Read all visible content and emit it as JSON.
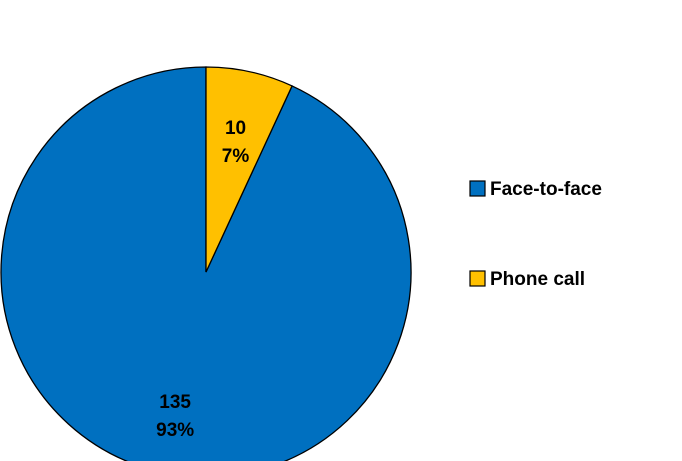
{
  "chart_data": {
    "type": "pie",
    "title": "",
    "categories": [
      "Face-to-face",
      "Phone call"
    ],
    "values": [
      135,
      10
    ],
    "percent_labels": [
      "93%",
      "7%"
    ],
    "colors": [
      "#0070C0",
      "#FFC000"
    ],
    "start": "12 o'clock",
    "direction": "counter-clockwise",
    "legend_position": "right"
  }
}
